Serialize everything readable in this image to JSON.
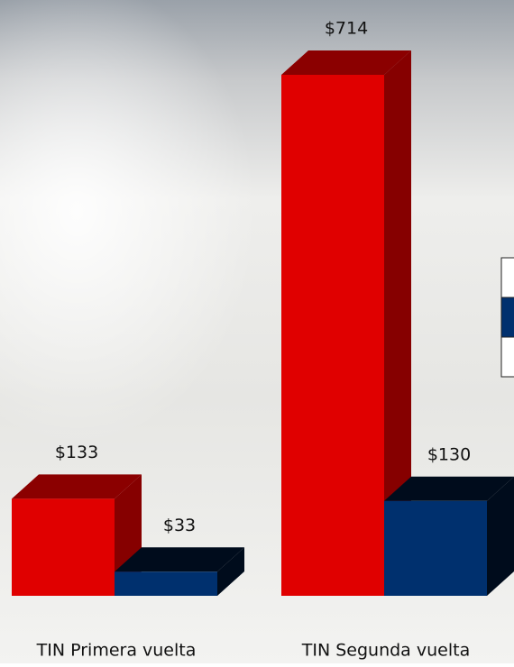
{
  "chart_data": {
    "type": "bar3d",
    "categories": [
      "TIN Primera vuelta",
      "TIN Segunda vuelta"
    ],
    "series": [
      {
        "color": "#e00000",
        "values": [
          133,
          714
        ],
        "value_labels": [
          "$133",
          "$714"
        ]
      },
      {
        "color": "#00306e",
        "values": [
          33,
          130
        ],
        "value_labels": [
          "$33",
          "$130"
        ]
      }
    ]
  }
}
